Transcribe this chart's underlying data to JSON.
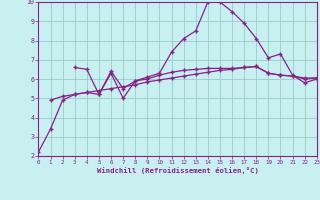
{
  "line1_x": [
    0,
    1,
    2,
    3,
    4,
    5,
    6,
    7,
    8,
    9,
    10,
    11,
    12,
    13,
    14,
    15,
    16,
    17,
    18,
    19,
    20,
    21,
    22,
    23
  ],
  "line1_y": [
    2.2,
    3.4,
    4.9,
    5.2,
    5.3,
    5.2,
    6.3,
    5.0,
    5.9,
    6.1,
    6.3,
    7.4,
    8.1,
    8.5,
    10.0,
    10.0,
    9.5,
    8.9,
    8.1,
    7.1,
    7.3,
    6.2,
    5.8,
    6.0
  ],
  "line2_x": [
    3,
    4,
    5,
    6,
    7,
    8,
    9,
    10,
    11,
    12,
    13,
    14,
    15,
    16,
    17,
    18,
    19,
    20,
    21,
    22,
    23
  ],
  "line2_y": [
    6.6,
    6.5,
    5.2,
    6.4,
    5.5,
    5.9,
    6.0,
    6.2,
    6.35,
    6.45,
    6.5,
    6.55,
    6.55,
    6.55,
    6.6,
    6.65,
    6.3,
    6.2,
    6.15,
    6.05,
    6.05
  ],
  "line3_x": [
    1,
    2,
    3,
    4,
    5,
    6,
    7,
    8,
    9,
    10,
    11,
    12,
    13,
    14,
    15,
    16,
    17,
    18,
    19,
    20,
    21,
    22,
    23
  ],
  "line3_y": [
    4.9,
    5.1,
    5.2,
    5.3,
    5.4,
    5.5,
    5.6,
    5.7,
    5.85,
    5.95,
    6.05,
    6.15,
    6.25,
    6.35,
    6.45,
    6.5,
    6.6,
    6.65,
    6.3,
    6.2,
    6.15,
    6.0,
    6.05
  ],
  "line_color": "#882288",
  "bg_color": "#c8f0f0",
  "grid_color": "#99cccc",
  "xlabel": "Windchill (Refroidissement éolien,°C)",
  "ylim": [
    2,
    10
  ],
  "xlim": [
    0,
    23
  ],
  "yticks": [
    2,
    3,
    4,
    5,
    6,
    7,
    8,
    9,
    10
  ],
  "xticks": [
    0,
    1,
    2,
    3,
    4,
    5,
    6,
    7,
    8,
    9,
    10,
    11,
    12,
    13,
    14,
    15,
    16,
    17,
    18,
    19,
    20,
    21,
    22,
    23
  ]
}
